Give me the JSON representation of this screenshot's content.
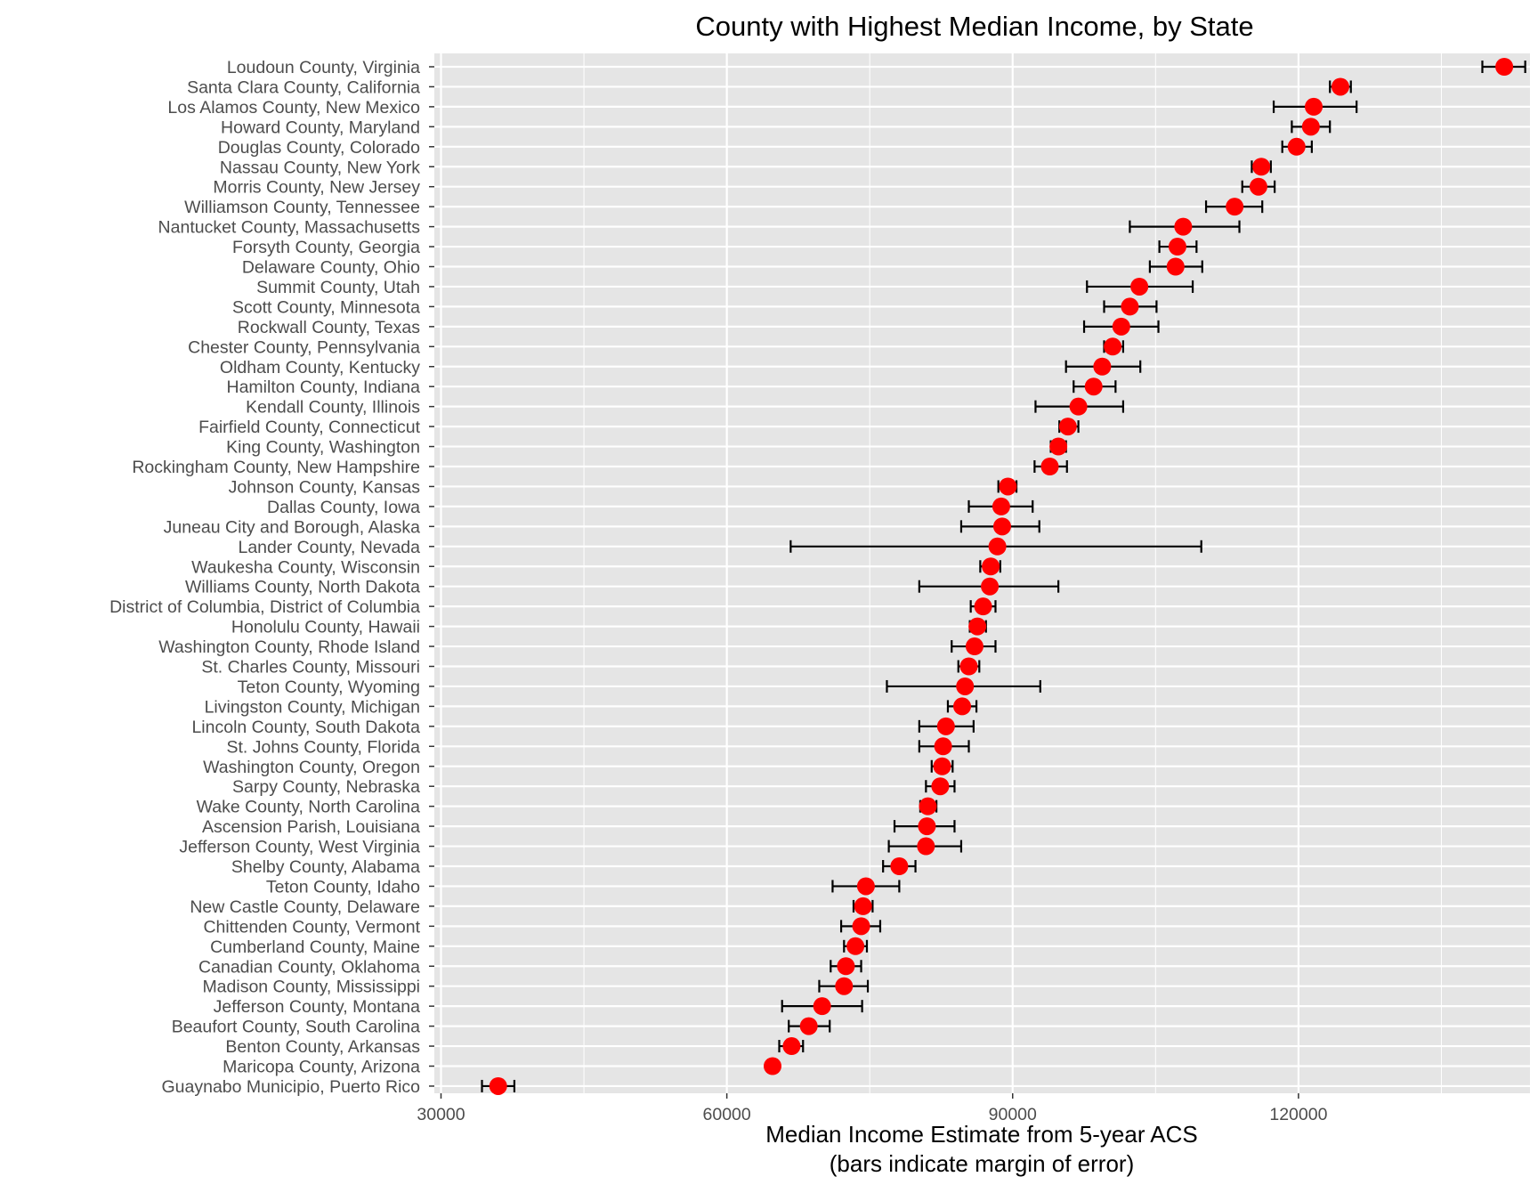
{
  "chart_data": {
    "type": "scatter",
    "title": "County with Highest Median Income, by State",
    "xlabel": "Median Income Estimate from 5-year ACS",
    "xlabel_note": "(bars indicate margin of error)",
    "ylabel": "",
    "xlim": [
      29300,
      144300
    ],
    "xticks": [
      30000,
      60000,
      90000,
      120000
    ],
    "xtick_labels": [
      "30000",
      "60000",
      "90000",
      "120000"
    ],
    "grid": true,
    "legend": "none",
    "colors": {
      "panel": "#e5e5e5",
      "grid": "#ffffff",
      "point": "#ff0000",
      "errorbar": "#000000",
      "text": "#4d4d4d",
      "title": "#000000"
    },
    "categories": [
      "Loudoun County, Virginia",
      "Santa Clara County, California",
      "Los Alamos County, New Mexico",
      "Howard County, Maryland",
      "Douglas County, Colorado",
      "Nassau County, New York",
      "Morris County, New Jersey",
      "Williamson County, Tennessee",
      "Nantucket County, Massachusetts",
      "Forsyth County, Georgia",
      "Delaware County, Ohio",
      "Summit County, Utah",
      "Scott County, Minnesota",
      "Rockwall County, Texas",
      "Chester County, Pennsylvania",
      "Oldham County, Kentucky",
      "Hamilton County, Indiana",
      "Kendall County, Illinois",
      "Fairfield County, Connecticut",
      "King County, Washington",
      "Rockingham County, New Hampshire",
      "Johnson County, Kansas",
      "Dallas County, Iowa",
      "Juneau City and Borough, Alaska",
      "Lander County, Nevada",
      "Waukesha County, Wisconsin",
      "Williams County, North Dakota",
      "District of Columbia, District of Columbia",
      "Honolulu County, Hawaii",
      "Washington County, Rhode Island",
      "St. Charles County, Missouri",
      "Teton County, Wyoming",
      "Livingston County, Michigan",
      "Lincoln County, South Dakota",
      "St. Johns County, Florida",
      "Washington County, Oregon",
      "Sarpy County, Nebraska",
      "Wake County, North Carolina",
      "Ascension Parish, Louisiana",
      "Jefferson County, West Virginia",
      "Shelby County, Alabama",
      "Teton County, Idaho",
      "New Castle County, Delaware",
      "Chittenden County, Vermont",
      "Cumberland County, Maine",
      "Canadian County, Oklahoma",
      "Madison County, Mississippi",
      "Jefferson County, Montana",
      "Beaufort County, South Carolina",
      "Benton County, Arkansas",
      "Maricopa County, Arizona",
      "Guaynabo Municipio, Puerto Rico"
    ],
    "values": [
      141600,
      124400,
      121600,
      121300,
      119800,
      116100,
      115800,
      113300,
      107900,
      107300,
      107100,
      103300,
      102300,
      101400,
      100500,
      99400,
      98500,
      96900,
      95800,
      94800,
      93900,
      89500,
      88800,
      88900,
      88400,
      87700,
      87600,
      86900,
      86300,
      86000,
      85400,
      85000,
      84700,
      83000,
      82700,
      82600,
      82400,
      81100,
      81000,
      80900,
      78100,
      74600,
      74300,
      74100,
      73500,
      72500,
      72300,
      70000,
      68600,
      66800,
      64800,
      36000
    ],
    "moe_low": [
      139300,
      123300,
      117400,
      119300,
      118300,
      115100,
      114100,
      110300,
      102300,
      105400,
      104400,
      97800,
      99600,
      97500,
      99600,
      95600,
      96400,
      92400,
      94900,
      94000,
      92300,
      88500,
      85400,
      84600,
      66700,
      86600,
      80200,
      85600,
      85500,
      83600,
      84300,
      76800,
      83200,
      80200,
      80200,
      81500,
      80900,
      80300,
      77600,
      77000,
      76400,
      71100,
      73300,
      72000,
      72300,
      70900,
      69700,
      65800,
      66500,
      65500,
      64800,
      34300
    ],
    "moe_high": [
      143800,
      125500,
      126100,
      123300,
      121400,
      117100,
      117500,
      116200,
      113800,
      109300,
      109900,
      108900,
      105100,
      105300,
      101600,
      103400,
      100800,
      101600,
      96900,
      95600,
      95700,
      90400,
      92100,
      92800,
      109800,
      88700,
      94800,
      88200,
      87200,
      88200,
      86500,
      92900,
      86200,
      85900,
      85400,
      83700,
      83900,
      82000,
      83900,
      84600,
      79800,
      78100,
      75300,
      76100,
      74700,
      74100,
      74800,
      74200,
      70800,
      68000,
      64800,
      37700
    ]
  }
}
